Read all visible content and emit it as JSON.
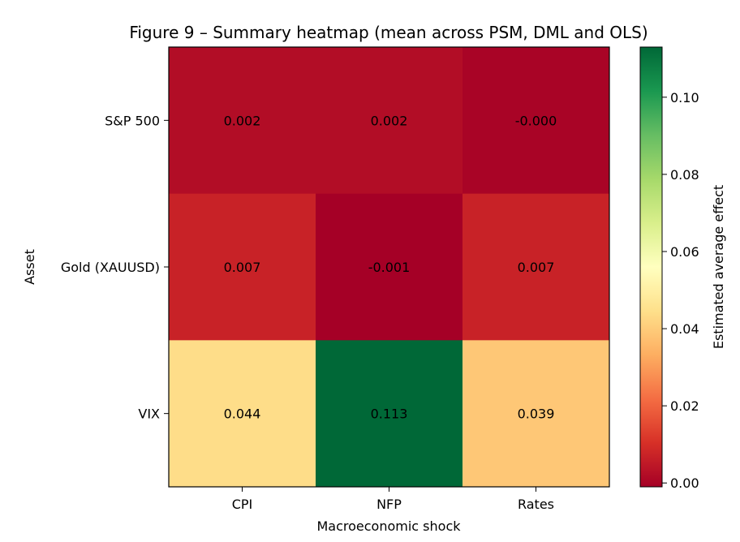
{
  "chart_data": {
    "type": "heatmap",
    "title": "Figure 9 – Summary heatmap (mean across PSM, DML and OLS)",
    "xlabel": "Macroeconomic shock",
    "ylabel": "Asset",
    "x_categories": [
      "CPI",
      "NFP",
      "Rates"
    ],
    "y_categories": [
      "S&P 500",
      "Gold (XAUUSD)",
      "VIX"
    ],
    "values": [
      [
        0.002,
        0.002,
        -0.0
      ],
      [
        0.007,
        -0.001,
        0.007
      ],
      [
        0.044,
        0.113,
        0.039
      ]
    ],
    "value_labels": [
      [
        "0.002",
        "0.002",
        "-0.000"
      ],
      [
        "0.007",
        "-0.001",
        "0.007"
      ],
      [
        "0.044",
        "0.113",
        "0.039"
      ]
    ],
    "colormap": "RdYlGn",
    "vmin": -0.001,
    "vmax": 0.113,
    "colorbar": {
      "label": "Estimated average effect",
      "ticks": [
        0.0,
        0.02,
        0.04,
        0.06,
        0.08,
        0.1
      ],
      "tick_labels": [
        "0.00",
        "0.02",
        "0.04",
        "0.06",
        "0.08",
        "0.10"
      ]
    }
  }
}
